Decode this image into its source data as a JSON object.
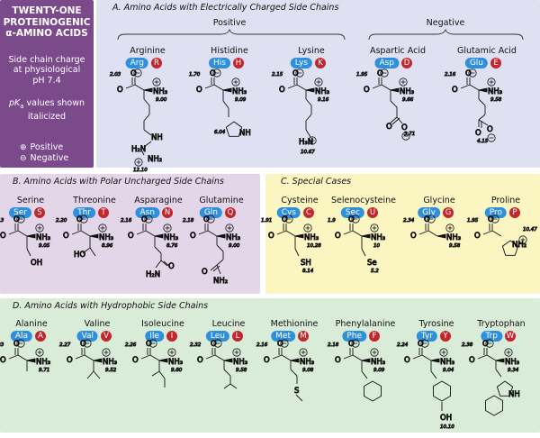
{
  "title_box": {
    "title": [
      "TWENTY-ONE",
      "PROTEINOGENIC",
      "α-AMINO ACIDS"
    ],
    "charge_note": [
      "Side chain charge",
      "at physiological",
      "pH 7.4"
    ],
    "pk_note": [
      "pK",
      "a",
      " values shown",
      "italicized"
    ],
    "legend_positive": "Positive",
    "legend_negative": "Negative",
    "legend_positive_symbol": "⊕",
    "legend_negative_symbol": "⊖"
  },
  "sections": {
    "A": "A. Amino Acids with Electrically Charged Side Chains",
    "B": "B. Amino Acids with Polar Uncharged Side Chains",
    "C": "C. Special Cases",
    "D": "D. Amino Acids with Hydrophobic Side Chains"
  },
  "groups": {
    "positive": "Positive",
    "negative": "Negative"
  },
  "colors": {
    "title_bg": "#7b4a8b",
    "panel_A": "#dfe0f2",
    "panel_B": "#e4d6e9",
    "panel_C": "#fbf5c2",
    "panel_D": "#d9ecd8",
    "abbr_badge": "#2f8fdc",
    "letter_badge": "#c1272d"
  },
  "amino_acids": {
    "arg": {
      "name": "Arginine",
      "abbr": "Arg",
      "letter": "R",
      "pka_cooh": "2.03",
      "pka_nh3": "9.00",
      "pka_side": "12.10",
      "side_labels": [
        "NH",
        "H₂N",
        "NH₂"
      ]
    },
    "his": {
      "name": "Histidine",
      "abbr": "His",
      "letter": "H",
      "pka_cooh": "1.70",
      "pka_nh3": "9.09",
      "pka_side": "6.04",
      "side_labels": [
        "NH"
      ]
    },
    "lys": {
      "name": "Lysine",
      "abbr": "Lys",
      "letter": "K",
      "pka_cooh": "2.15",
      "pka_nh3": "9.16",
      "pka_side": "10.67",
      "side_labels": [
        "H₃N"
      ]
    },
    "asp": {
      "name": "Aspartic Acid",
      "abbr": "Asp",
      "letter": "D",
      "pka_cooh": "1.95",
      "pka_nh3": "9.66",
      "pka_side": "3.71",
      "side_labels": [
        "O"
      ]
    },
    "glu": {
      "name": "Glutamic Acid",
      "abbr": "Glu",
      "letter": "E",
      "pka_cooh": "2.16",
      "pka_nh3": "9.58",
      "pka_side": "4.15",
      "side_labels": [
        "O"
      ]
    },
    "ser": {
      "name": "Serine",
      "abbr": "Ser",
      "letter": "S",
      "pka_cooh": "2.13",
      "pka_nh3": "9.05",
      "side_labels": [
        "OH"
      ]
    },
    "thr": {
      "name": "Threonine",
      "abbr": "Thr",
      "letter": "T",
      "pka_cooh": "2.20",
      "pka_nh3": "8.96",
      "side_labels": [
        "HO"
      ]
    },
    "asn": {
      "name": "Asparagine",
      "abbr": "Asn",
      "letter": "N",
      "pka_cooh": "2.16",
      "pka_nh3": "8.76",
      "side_labels": [
        "O",
        "H₂N"
      ]
    },
    "gln": {
      "name": "Glutamine",
      "abbr": "Gln",
      "letter": "Q",
      "pka_cooh": "2.18",
      "pka_nh3": "9.00",
      "side_labels": [
        "O",
        "NH₂"
      ]
    },
    "cys": {
      "name": "Cysteine",
      "abbr": "Cys",
      "letter": "C",
      "pka_cooh": "1.91",
      "pka_nh3": "10.28",
      "pka_side": "8.14",
      "side_labels": [
        "SH"
      ]
    },
    "sec": {
      "name": "Selenocysteine",
      "abbr": "Sec",
      "letter": "U",
      "pka_cooh": "1.9",
      "pka_nh3": "10",
      "pka_side": "5.2",
      "side_labels": [
        "Se"
      ]
    },
    "gly": {
      "name": "Glycine",
      "abbr": "Gly",
      "letter": "G",
      "pka_cooh": "2.34",
      "pka_nh3": "9.58"
    },
    "pro": {
      "name": "Proline",
      "abbr": "Pro",
      "letter": "P",
      "pka_cooh": "1.95",
      "pka_nh3": "10.47",
      "side_labels": [
        "NH₂"
      ]
    },
    "ala": {
      "name": "Alanine",
      "abbr": "Ala",
      "letter": "A",
      "pka_cooh": "2.33",
      "pka_nh3": "9.71"
    },
    "val": {
      "name": "Valine",
      "abbr": "Val",
      "letter": "V",
      "pka_cooh": "2.27",
      "pka_nh3": "9.52"
    },
    "ile": {
      "name": "Isoleucine",
      "abbr": "Ile",
      "letter": "I",
      "pka_cooh": "2.26",
      "pka_nh3": "9.60"
    },
    "leu": {
      "name": "Leucine",
      "abbr": "Leu",
      "letter": "L",
      "pka_cooh": "2.32",
      "pka_nh3": "9.58"
    },
    "met": {
      "name": "Methionine",
      "abbr": "Met",
      "letter": "M",
      "pka_cooh": "2.16",
      "pka_nh3": "9.08",
      "side_labels": [
        "S"
      ]
    },
    "phe": {
      "name": "Phenylalanine",
      "abbr": "Phe",
      "letter": "F",
      "pka_cooh": "2.18",
      "pka_nh3": "9.09"
    },
    "tyr": {
      "name": "Tyrosine",
      "abbr": "Tyr",
      "letter": "Y",
      "pka_cooh": "2.24",
      "pka_nh3": "9.04",
      "pka_side": "10.10",
      "side_labels": [
        "OH"
      ]
    },
    "trp": {
      "name": "Tryptophan",
      "abbr": "Trp",
      "letter": "W",
      "pka_cooh": "2.38",
      "pka_nh3": "9.34",
      "side_labels": [
        "NH"
      ]
    }
  },
  "common_labels": {
    "o": "O",
    "nh3": "NH₃",
    "plus": "+",
    "minus": "−"
  }
}
